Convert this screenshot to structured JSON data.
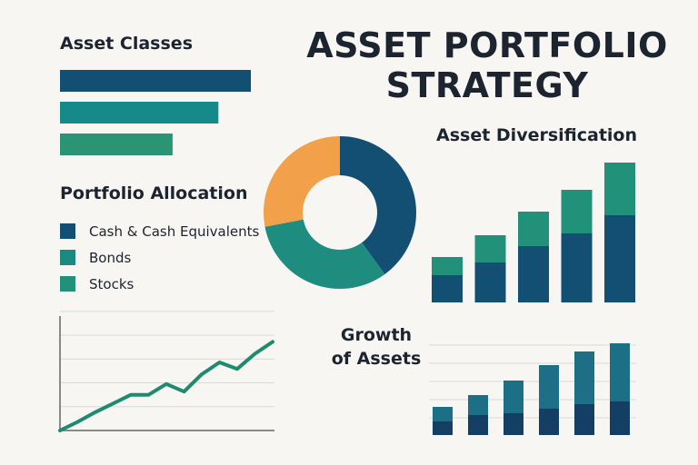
{
  "title": {
    "line1": "ASSET PORTFOLIO",
    "line2": "STRATEGY"
  },
  "colors": {
    "navy": "#124f73",
    "teal": "#1a8a8a",
    "green": "#2a9474",
    "orange": "#f2a14a",
    "grid": "#d9d9d9",
    "axis": "#8a8a8a"
  },
  "chart_data": [
    {
      "type": "bar",
      "title": "Asset Classes",
      "orientation": "horizontal",
      "values": [
        1.0,
        0.83,
        0.59
      ],
      "colors": [
        "#124f73",
        "#168a8a",
        "#2a9474"
      ]
    },
    {
      "type": "pie",
      "title": "Portfolio Allocation",
      "legend": [
        "Cash & Cash Equivalents",
        "Bonds",
        "Stocks"
      ],
      "legend_colors": [
        "#124f73",
        "#1a8a80",
        "#22917a"
      ],
      "values": [
        40,
        32,
        28
      ],
      "colors": [
        "#124f73",
        "#1e8c7e",
        "#f2a14a"
      ],
      "donut": true
    },
    {
      "type": "bar",
      "title": "Asset Diversification",
      "stacked": true,
      "series": [
        {
          "values": [
            30,
            44,
            62,
            76,
            96
          ]
        },
        {
          "values": [
            20,
            30,
            38,
            48,
            58
          ]
        }
      ],
      "colors": [
        "#124f73",
        "#22917a"
      ]
    },
    {
      "type": "line",
      "x": [
        0,
        1,
        2,
        3,
        4,
        5,
        6,
        7,
        8,
        9,
        10,
        11,
        12
      ],
      "values": [
        0,
        8,
        17,
        25,
        33,
        33,
        43,
        36,
        52,
        63,
        57,
        71,
        82
      ],
      "ylim": [
        0,
        100
      ],
      "grid": true,
      "color": "#1e8a6e"
    },
    {
      "type": "bar",
      "title": "Growth of Assets",
      "stacked": true,
      "grid": true,
      "series": [
        {
          "values": [
            15,
            22,
            24,
            29,
            34,
            37
          ]
        },
        {
          "values": [
            16,
            22,
            36,
            48,
            58,
            64
          ]
        }
      ],
      "colors": [
        "#123f63",
        "#1c6f85"
      ]
    }
  ],
  "sections": {
    "asset_classes": "Asset Classes",
    "portfolio_allocation": "Portfolio Allocation",
    "asset_diversification": "Asset Diversification",
    "growth_line1": "Growth",
    "growth_line2": "of Assets"
  },
  "legend": [
    {
      "label": "Cash & Cash Equivalents",
      "color": "#124f73"
    },
    {
      "label": "Bonds",
      "color": "#1a8a80"
    },
    {
      "label": "Stocks",
      "color": "#22917a"
    }
  ]
}
